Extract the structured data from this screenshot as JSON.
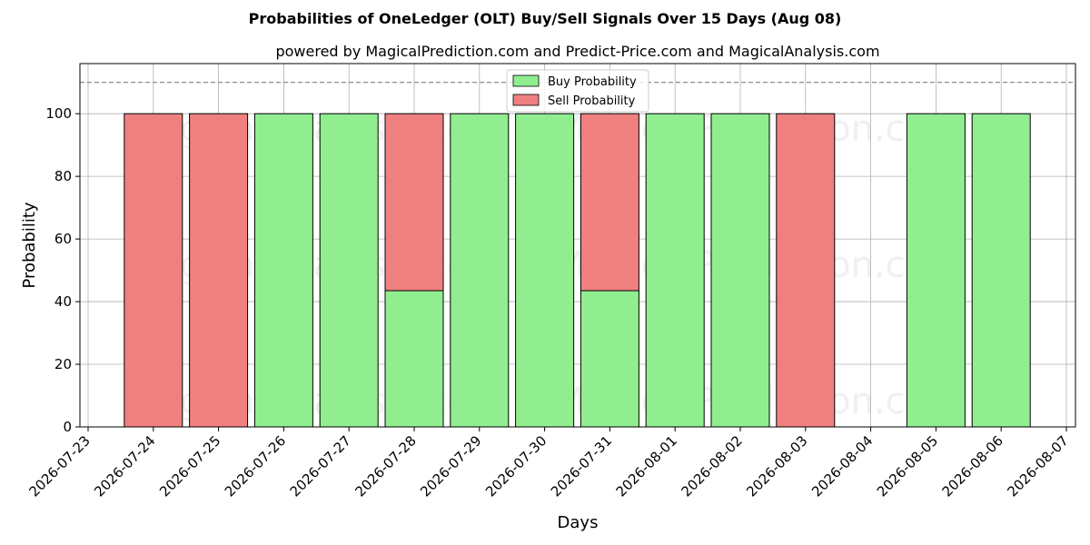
{
  "chart_data": {
    "type": "bar",
    "title": "Probabilities of OneLedger (OLT) Buy/Sell Signals Over 15 Days (Aug 08)",
    "subtitle": "powered by MagicalPrediction.com and Predict-Price.com and MagicalAnalysis.com",
    "xlabel": "Days",
    "ylabel": "Probability",
    "ylim": [
      0,
      116
    ],
    "yticks": [
      0,
      20,
      40,
      60,
      80,
      100
    ],
    "reference_line": 110,
    "grid": true,
    "legend_position": "top-center",
    "x_ticks": [
      "2026-07-23",
      "2026-07-24",
      "2026-07-25",
      "2026-07-26",
      "2026-07-27",
      "2026-07-28",
      "2026-07-29",
      "2026-07-30",
      "2026-07-31",
      "2026-08-01",
      "2026-08-02",
      "2026-08-03",
      "2026-08-04",
      "2026-08-05",
      "2026-08-06",
      "2026-08-07"
    ],
    "categories": [
      "2026-07-24",
      "2026-07-25",
      "2026-07-26",
      "2026-07-27",
      "2026-07-28",
      "2026-07-29",
      "2026-07-30",
      "2026-07-31",
      "2026-08-01",
      "2026-08-02",
      "2026-08-03",
      "2026-08-05",
      "2026-08-06"
    ],
    "series": [
      {
        "name": "Buy Probability",
        "color": "#90ee90",
        "values": [
          0,
          0,
          100,
          100,
          43.5,
          100,
          100,
          43.5,
          100,
          100,
          0,
          100,
          100
        ]
      },
      {
        "name": "Sell Probability",
        "color": "#f08080",
        "values": [
          100,
          100,
          0,
          0,
          56.5,
          0,
          0,
          56.5,
          0,
          0,
          100,
          0,
          0
        ]
      }
    ],
    "watermarks": [
      "MagicalAnalysis.com",
      "MagicalPrediction.com"
    ]
  }
}
